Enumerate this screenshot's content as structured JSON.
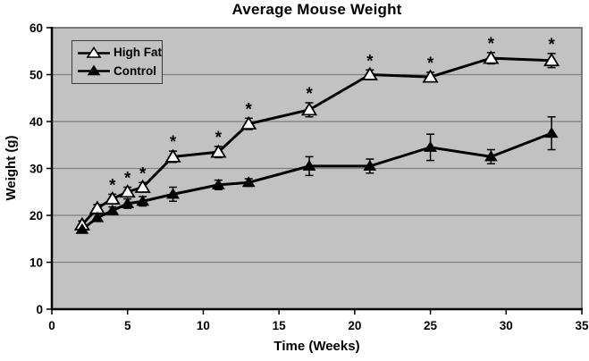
{
  "title": "Average Mouse Weight",
  "x_axis": {
    "label": "Time (Weeks)",
    "ticks": [
      "0",
      "5",
      "10",
      "15",
      "20",
      "25",
      "30",
      "35"
    ]
  },
  "y_axis": {
    "label": "Weight (g)",
    "ticks": [
      "0",
      "10",
      "20",
      "30",
      "40",
      "50",
      "60"
    ]
  },
  "legend": {
    "items": [
      {
        "label": "High Fat",
        "marker": "open-triangle"
      },
      {
        "label": "Control",
        "marker": "filled-triangle"
      }
    ]
  },
  "significance_marker": "*",
  "colors": {
    "page_bg": "#ffffff",
    "plot_bg": "#c2c2c2",
    "gridline": "#7f7f7f",
    "plot_border": "#595959",
    "series": "#000000",
    "high_fat_marker_fill": "#ffffff",
    "control_marker_fill": "#000000",
    "text": "#000000"
  },
  "chart_data": {
    "type": "line",
    "title": "Average Mouse Weight",
    "xlabel": "Time (Weeks)",
    "ylabel": "Weight (g)",
    "xlim": [
      0,
      35
    ],
    "ylim": [
      0,
      60
    ],
    "grid": "horizontal",
    "legend_position": "top-left",
    "x": [
      2,
      3,
      4,
      5,
      6,
      8,
      11,
      13,
      17,
      21,
      25,
      29,
      33
    ],
    "series": [
      {
        "name": "High Fat",
        "marker": "open-triangle",
        "values": [
          18,
          21.5,
          23.5,
          25,
          26,
          32.5,
          33.5,
          39.5,
          42.5,
          50,
          49.5,
          53.5,
          53
        ],
        "errors": [
          0.8,
          0.8,
          1,
          1,
          1,
          1.2,
          1.2,
          1.2,
          1.5,
          1,
          1,
          1.2,
          1.5
        ],
        "significant": [
          false,
          false,
          true,
          true,
          true,
          true,
          true,
          true,
          true,
          true,
          true,
          true,
          true
        ]
      },
      {
        "name": "Control",
        "marker": "filled-triangle",
        "values": [
          17,
          19.5,
          21,
          22.5,
          23,
          24.5,
          26.5,
          27,
          30.5,
          30.5,
          34.5,
          32.5,
          37.5
        ],
        "errors": [
          0.5,
          0.8,
          0.8,
          1,
          1,
          1.5,
          1,
          0.8,
          2,
          1.5,
          2.8,
          1.5,
          3.5
        ],
        "significant": [
          false,
          false,
          false,
          false,
          false,
          false,
          false,
          false,
          false,
          false,
          false,
          false,
          false
        ]
      }
    ],
    "annotation": "Asterisks mark significant High Fat points"
  }
}
